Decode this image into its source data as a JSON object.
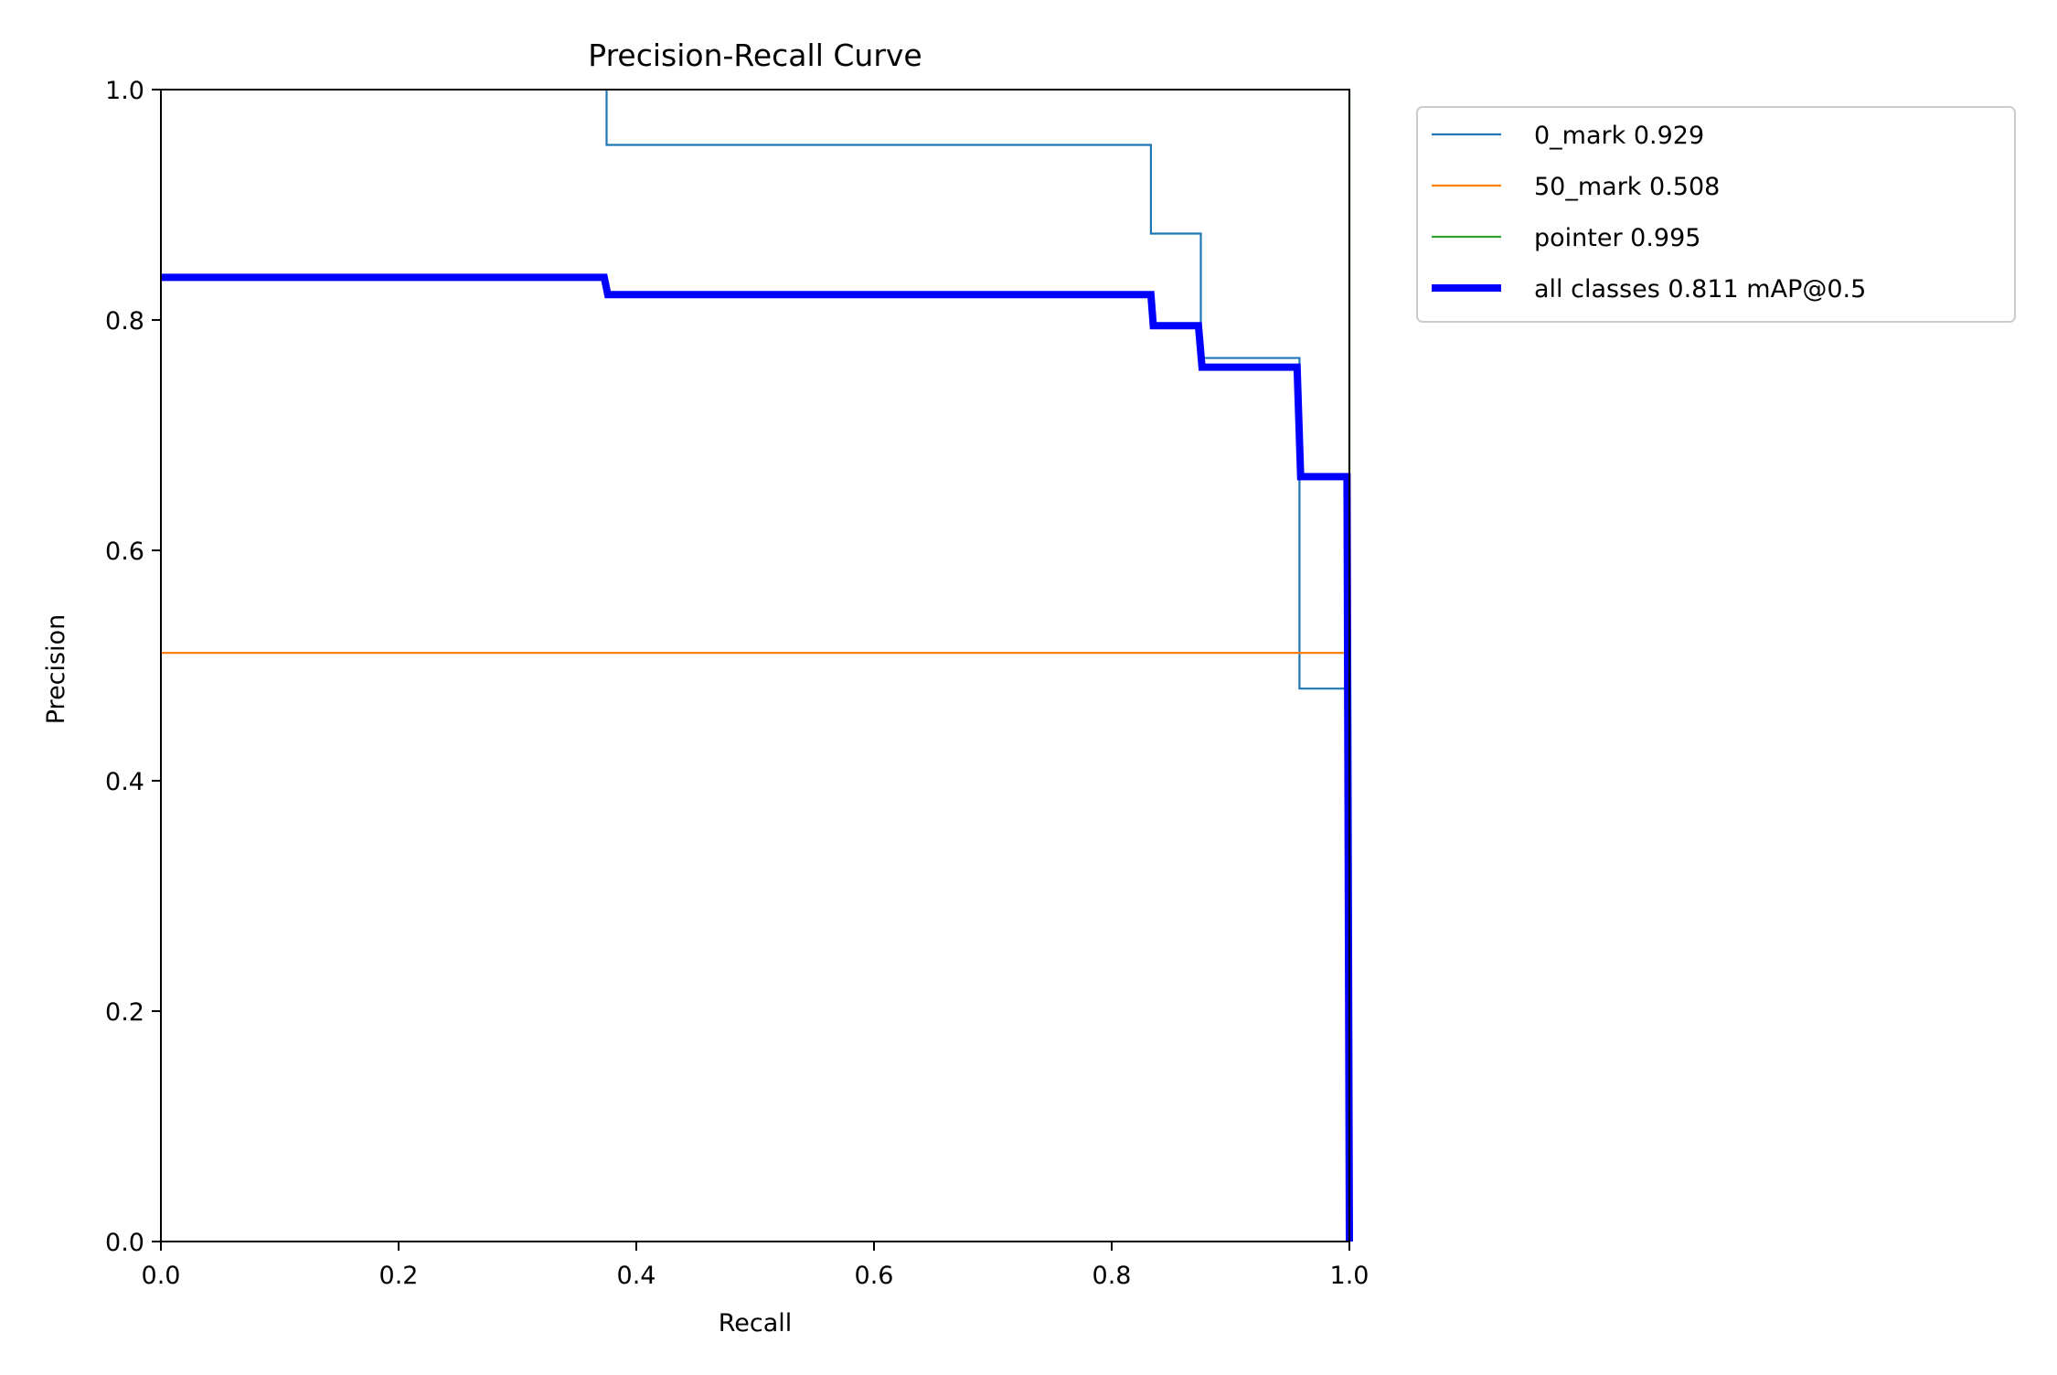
{
  "chart_data": {
    "type": "line",
    "title": "Precision-Recall Curve",
    "xlabel": "Recall",
    "ylabel": "Precision",
    "xlim": [
      0,
      1
    ],
    "ylim": [
      0,
      1
    ],
    "xticks": [
      "0.0",
      "0.2",
      "0.4",
      "0.6",
      "0.8",
      "1.0"
    ],
    "yticks": [
      "0.0",
      "0.2",
      "0.4",
      "0.6",
      "0.8",
      "1.0"
    ],
    "grid": false,
    "legend_position": "outside-top-right",
    "series": [
      {
        "name": "0_mark 0.929",
        "color": "#1f77b4",
        "emphasis": "thin",
        "x": [
          0.375,
          0.375,
          0.833,
          0.833,
          0.875,
          0.875,
          0.958,
          0.958,
          1.0,
          1.0
        ],
        "y": [
          1.0,
          0.952,
          0.952,
          0.875,
          0.875,
          0.767,
          0.767,
          0.48,
          0.48,
          0.0
        ]
      },
      {
        "name": "50_mark 0.508",
        "color": "#ff7f0e",
        "emphasis": "thin",
        "x": [
          0.0,
          1.0,
          1.0
        ],
        "y": [
          0.511,
          0.511,
          0.0
        ]
      },
      {
        "name": "pointer 0.995",
        "color": "#2ca02c",
        "emphasis": "thin",
        "x": [
          1.0,
          1.0
        ],
        "y": [
          1.0,
          0.0
        ]
      },
      {
        "name": "all classes 0.811 mAP@0.5",
        "color": "#0000ff",
        "emphasis": "thick",
        "x": [
          0.0,
          0.373,
          0.376,
          0.833,
          0.835,
          0.873,
          0.876,
          0.956,
          0.959,
          0.998,
          1.0
        ],
        "y": [
          0.837,
          0.837,
          0.822,
          0.822,
          0.795,
          0.795,
          0.759,
          0.759,
          0.664,
          0.664,
          0.0
        ]
      }
    ]
  }
}
